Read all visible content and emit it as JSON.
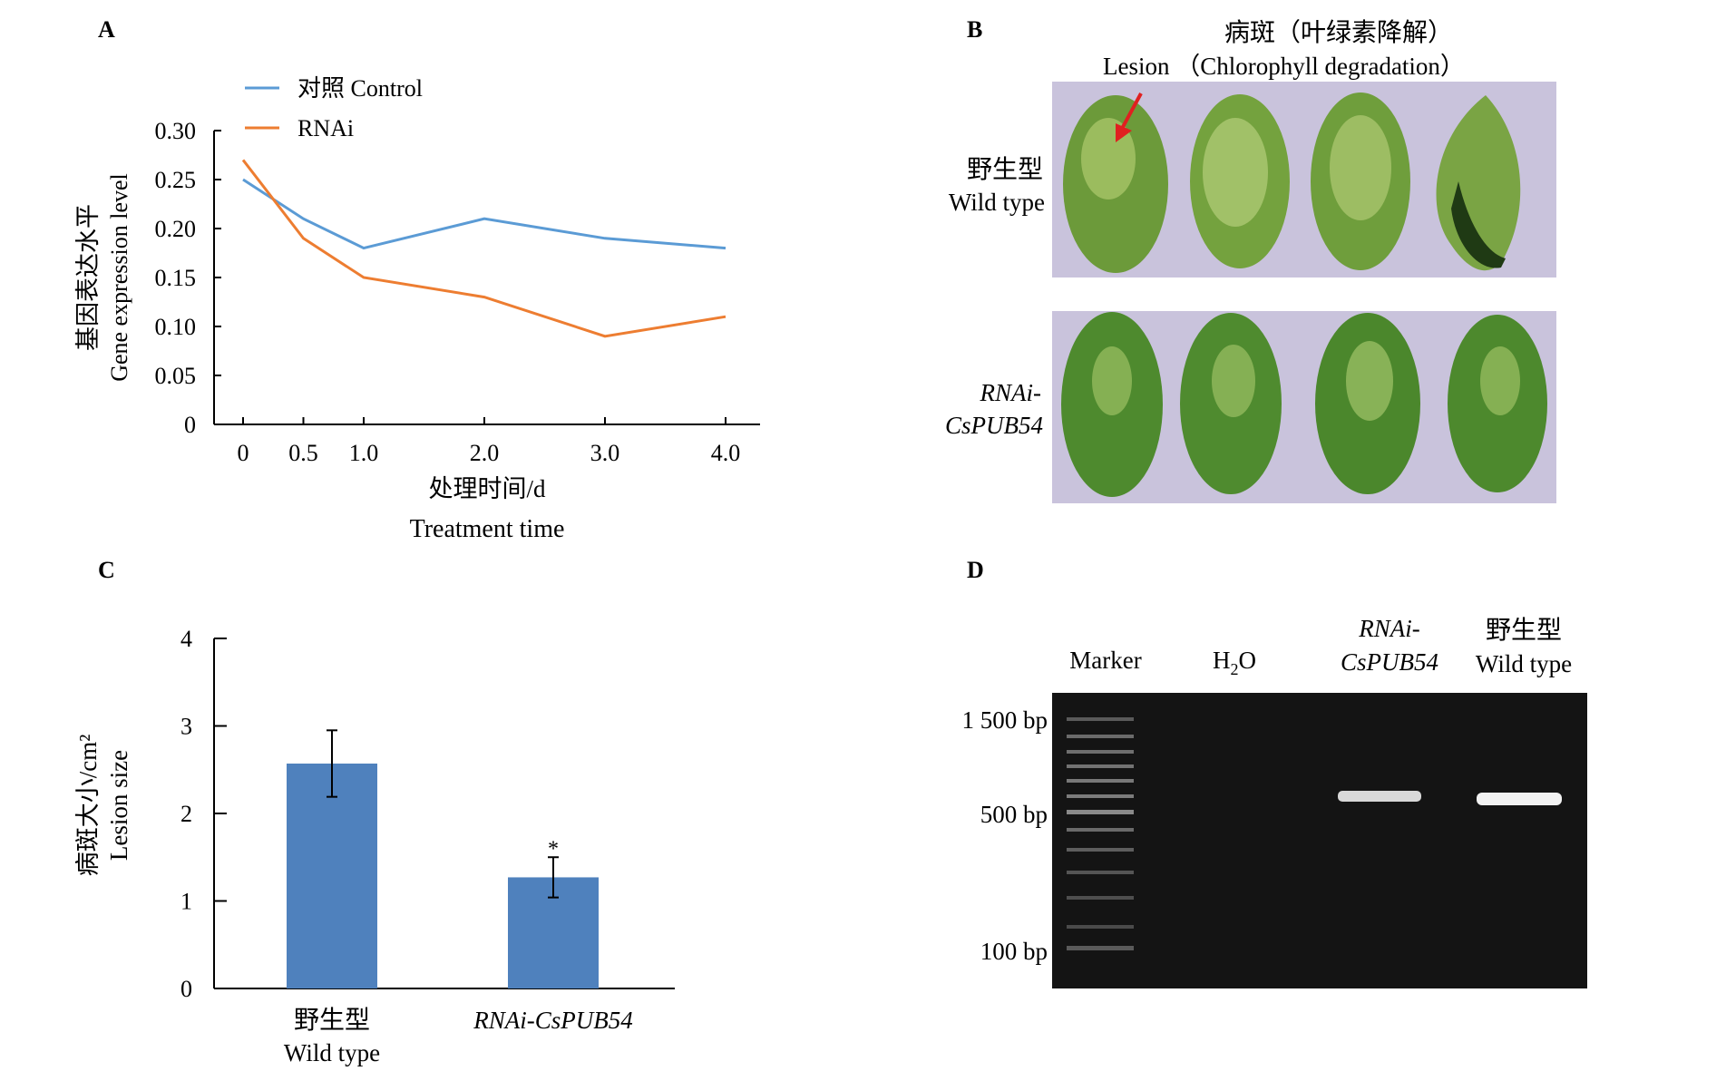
{
  "panels": {
    "a": "A",
    "b": "B",
    "c": "C",
    "d": "D"
  },
  "chart_data": [
    {
      "type": "line",
      "panel": "A",
      "x": [
        0,
        0.5,
        1.0,
        2.0,
        3.0,
        4.0
      ],
      "x_tick_labels": [
        "0",
        "0.5",
        "1.0",
        "2.0",
        "3.0",
        "4.0"
      ],
      "xlabel_cn": "处理时间/d",
      "xlabel_en": "Treatment time",
      "ylabel_cn": "基因表达水平",
      "ylabel_en": "Gene expression level",
      "ylim": [
        0,
        0.3
      ],
      "y_ticks": [
        0,
        0.05,
        0.1,
        0.15,
        0.2,
        0.25,
        0.3
      ],
      "y_tick_labels": [
        "0",
        "0.05",
        "0.10",
        "0.15",
        "0.20",
        "0.25",
        "0.30"
      ],
      "legend_position": "top-left",
      "series": [
        {
          "name": "对照 Control",
          "color": "#5b9bd5",
          "values": [
            0.25,
            0.21,
            0.18,
            0.21,
            0.19,
            0.18
          ]
        },
        {
          "name": "RNAi",
          "color": "#ed7d31",
          "values": [
            0.27,
            0.19,
            0.15,
            0.13,
            0.09,
            0.11
          ]
        }
      ]
    },
    {
      "type": "bar",
      "panel": "C",
      "categories": [
        {
          "cn": "野生型",
          "en": "Wild type"
        },
        {
          "cn": "",
          "en": "RNAi-CsPUB54"
        }
      ],
      "values": [
        2.57,
        1.27
      ],
      "errors": [
        0.38,
        0.23
      ],
      "significance": [
        "",
        "*"
      ],
      "bar_color": "#4f81bd",
      "ylabel_cn": "病斑大小/cm²",
      "ylabel_en": "Lesion size",
      "ylim": [
        0,
        4
      ],
      "y_ticks": [
        0,
        1,
        2,
        3,
        4
      ]
    }
  ],
  "leaf_panel": {
    "title_cn": "病斑（叶绿素降解）",
    "lesion_label": "Lesion （Chlorophyll degradation）",
    "row1_cn": "野生型",
    "row1_en": "Wild type",
    "row2_line1": "RNAi-",
    "row2_line2": "CsPUB54",
    "background_color": "#c9c3dc",
    "arrow_color": "#e02020",
    "leaf_color": "#4f8c2a"
  },
  "gel_panel": {
    "lanes": [
      "Marker",
      "H",
      "RNAi-",
      "野生型"
    ],
    "h2o_sub": "2",
    "h2o_tail": "O",
    "lane3_line2": "CsPUB54",
    "lane4_line2": "Wild type",
    "size_labels": [
      "1 500 bp",
      "500 bp",
      "100 bp"
    ],
    "gel_color": "#141414"
  }
}
